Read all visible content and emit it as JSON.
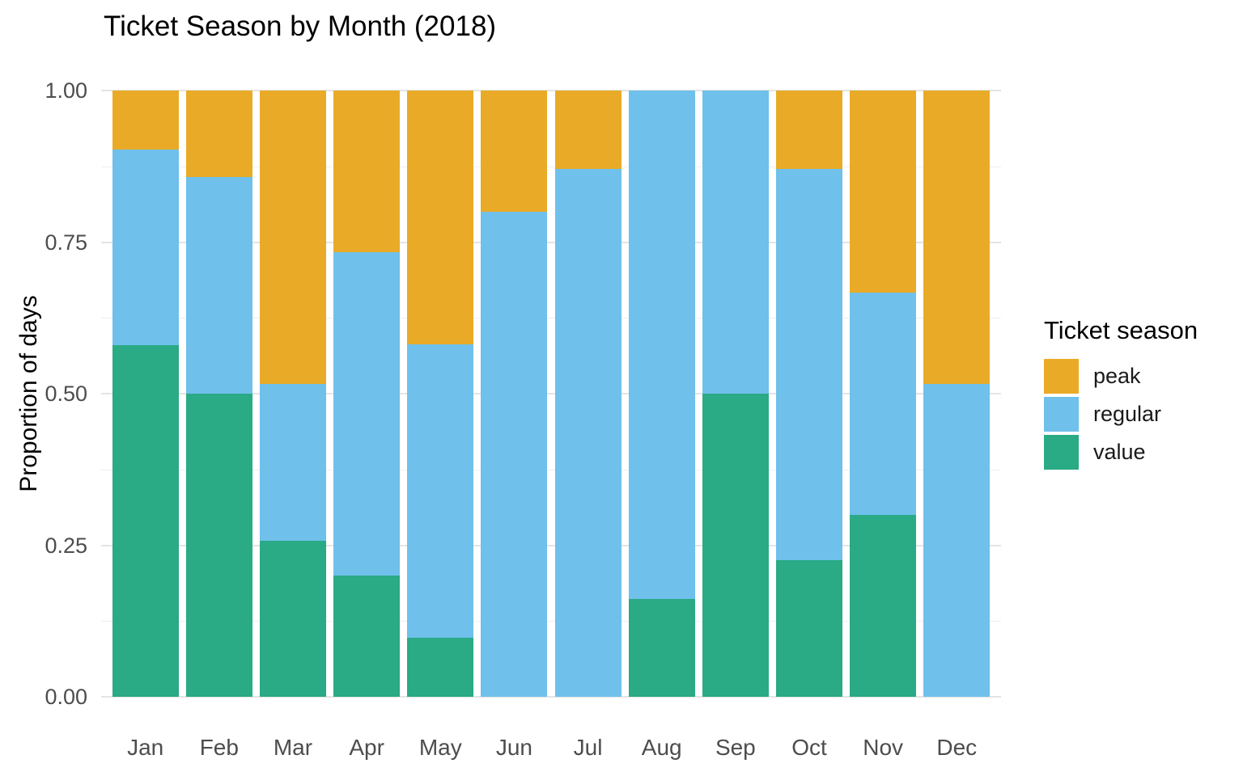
{
  "chart_data": {
    "type": "bar",
    "stacked": true,
    "title": "Ticket Season by Month (2018)",
    "xlabel": "",
    "ylabel": "Proportion of days",
    "categories": [
      "Jan",
      "Feb",
      "Mar",
      "Apr",
      "May",
      "Jun",
      "Jul",
      "Aug",
      "Sep",
      "Oct",
      "Nov",
      "Dec"
    ],
    "series": [
      {
        "name": "peak",
        "color": "#e9ab27",
        "values": [
          0.097,
          0.143,
          0.484,
          0.267,
          0.419,
          0.2,
          0.129,
          0.0,
          0.0,
          0.129,
          0.333,
          0.484
        ]
      },
      {
        "name": "regular",
        "color": "#6fc0eb",
        "values": [
          0.323,
          0.357,
          0.258,
          0.533,
          0.484,
          0.8,
          0.871,
          0.839,
          0.5,
          0.645,
          0.367,
          0.516
        ]
      },
      {
        "name": "value",
        "color": "#2aaa85",
        "values": [
          0.581,
          0.5,
          0.258,
          0.2,
          0.097,
          0.0,
          0.0,
          0.161,
          0.5,
          0.226,
          0.3,
          0.0
        ]
      }
    ],
    "ylim": [
      0,
      1
    ],
    "ytick_values": [
      0,
      0.25,
      0.5,
      0.75,
      1
    ],
    "ytick_labels": [
      "0.00",
      "0.25",
      "0.50",
      "0.75",
      "1.00"
    ],
    "grid": "on",
    "minor_grid_values": [
      0.125,
      0.375,
      0.625,
      0.875
    ],
    "legend": {
      "title": "Ticket season",
      "position": "right",
      "entries": [
        "peak",
        "regular",
        "value"
      ]
    },
    "colors": {
      "background": "#ffffff",
      "grid_major": "#e4e4e4",
      "grid_minor": "#efefef",
      "tick_label_text": "#4d4d4d",
      "title_text": "#000000"
    }
  }
}
